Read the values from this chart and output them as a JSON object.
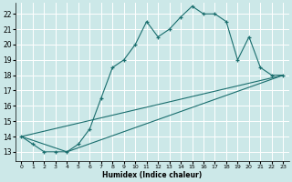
{
  "title": "",
  "xlabel": "Humidex (Indice chaleur)",
  "bg_color": "#cce8e8",
  "grid_color": "#ffffff",
  "line_color": "#1a6e6e",
  "xlim": [
    -0.5,
    23.5
  ],
  "ylim": [
    12.4,
    22.7
  ],
  "xticks": [
    0,
    1,
    2,
    3,
    4,
    5,
    6,
    7,
    8,
    9,
    10,
    11,
    12,
    13,
    14,
    15,
    16,
    17,
    18,
    19,
    20,
    21,
    22,
    23
  ],
  "yticks": [
    13,
    14,
    15,
    16,
    17,
    18,
    19,
    20,
    21,
    22
  ],
  "line1_x": [
    0,
    1,
    2,
    3,
    4,
    5,
    6,
    7,
    8,
    9,
    10,
    11,
    12,
    13,
    14,
    15,
    16,
    17,
    18,
    19,
    20,
    21,
    22,
    23
  ],
  "line1_y": [
    14.0,
    13.5,
    13.0,
    13.0,
    13.0,
    13.5,
    14.5,
    16.5,
    18.5,
    19.0,
    20.0,
    21.5,
    20.5,
    21.0,
    21.8,
    22.5,
    22.0,
    22.0,
    21.5,
    19.0,
    20.5,
    18.5,
    18.0,
    18.0
  ],
  "line2_x": [
    0,
    23
  ],
  "line2_y": [
    14.0,
    18.0
  ],
  "line3_x": [
    0,
    4,
    23
  ],
  "line3_y": [
    14.0,
    13.0,
    18.0
  ]
}
